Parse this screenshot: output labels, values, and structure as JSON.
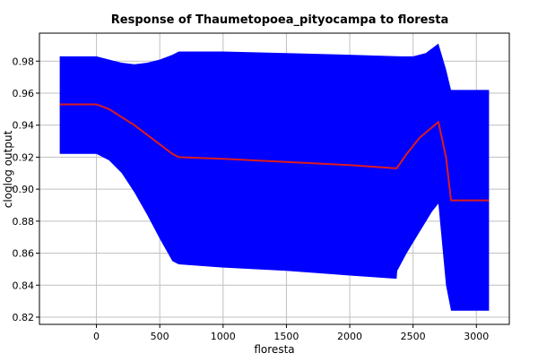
{
  "chart_data": {
    "type": "area",
    "title": "Response of Thaumetopoea_pityocampa to floresta",
    "xlabel": "floresta",
    "ylabel": "cloglog output",
    "xlim": [
      -450,
      3260
    ],
    "ylim": [
      0.8155,
      0.9975
    ],
    "x_ticks": [
      0,
      500,
      1000,
      1500,
      2000,
      2500,
      3000
    ],
    "y_ticks": [
      0.82,
      0.84,
      0.86,
      0.88,
      0.9,
      0.92,
      0.94,
      0.96,
      0.98
    ],
    "grid": true,
    "colors": {
      "band": "#0000ff",
      "line": "#dd1c1c"
    },
    "series": [
      {
        "role": "mean response",
        "x": [
          -290,
          0,
          100,
          200,
          300,
          400,
          500,
          600,
          650,
          1000,
          1500,
          2000,
          2370,
          2450,
          2550,
          2700,
          2760,
          2800,
          3100
        ],
        "y": [
          0.953,
          0.953,
          0.95,
          0.945,
          0.94,
          0.934,
          0.928,
          0.922,
          0.92,
          0.919,
          0.917,
          0.915,
          0.913,
          0.922,
          0.932,
          0.942,
          0.92,
          0.893,
          0.893
        ]
      },
      {
        "role": "upper bound",
        "x": [
          -290,
          0,
          100,
          200,
          300,
          400,
          500,
          600,
          650,
          1000,
          1500,
          2000,
          2400,
          2500,
          2600,
          2700,
          2760,
          2800,
          3100
        ],
        "y": [
          0.983,
          0.983,
          0.981,
          0.979,
          0.978,
          0.979,
          0.981,
          0.984,
          0.986,
          0.986,
          0.985,
          0.984,
          0.983,
          0.983,
          0.985,
          0.991,
          0.975,
          0.962,
          0.962
        ]
      },
      {
        "role": "lower bound",
        "x": [
          -290,
          0,
          100,
          200,
          300,
          400,
          500,
          600,
          650,
          1000,
          1500,
          2000,
          2370,
          2375,
          2450,
          2550,
          2650,
          2700,
          2760,
          2800,
          3100
        ],
        "y": [
          0.922,
          0.922,
          0.918,
          0.91,
          0.898,
          0.884,
          0.869,
          0.855,
          0.853,
          0.851,
          0.849,
          0.846,
          0.844,
          0.849,
          0.86,
          0.873,
          0.886,
          0.891,
          0.84,
          0.824,
          0.824
        ]
      }
    ]
  }
}
